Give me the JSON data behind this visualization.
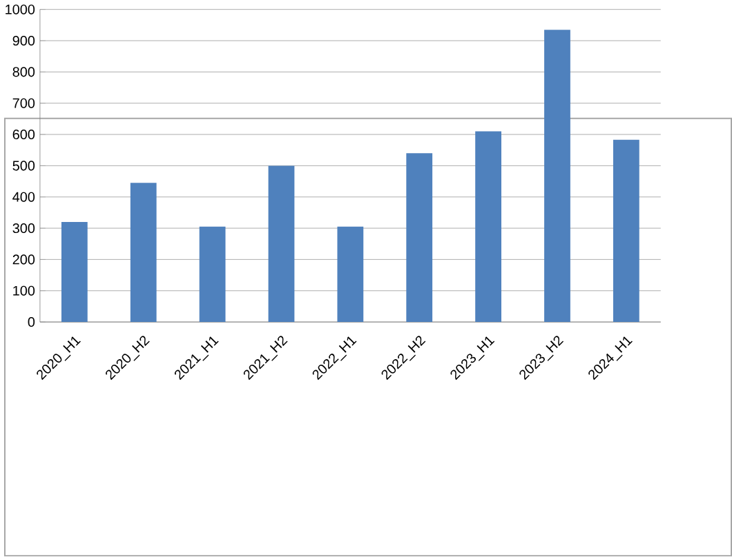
{
  "chart_data": {
    "type": "bar",
    "categories": [
      "2020_H1",
      "2020_H2",
      "2021_H1",
      "2021_H2",
      "2022_H1",
      "2022_H2",
      "2023_H1",
      "2023_H2",
      "2024_H1"
    ],
    "values": [
      320,
      445,
      305,
      500,
      305,
      540,
      610,
      935,
      583
    ],
    "color": "#4f81bd",
    "ylim": [
      0,
      1000
    ],
    "yticks": [
      0,
      100,
      200,
      300,
      400,
      500,
      600,
      700,
      800,
      900,
      1000
    ],
    "grid": "y"
  }
}
